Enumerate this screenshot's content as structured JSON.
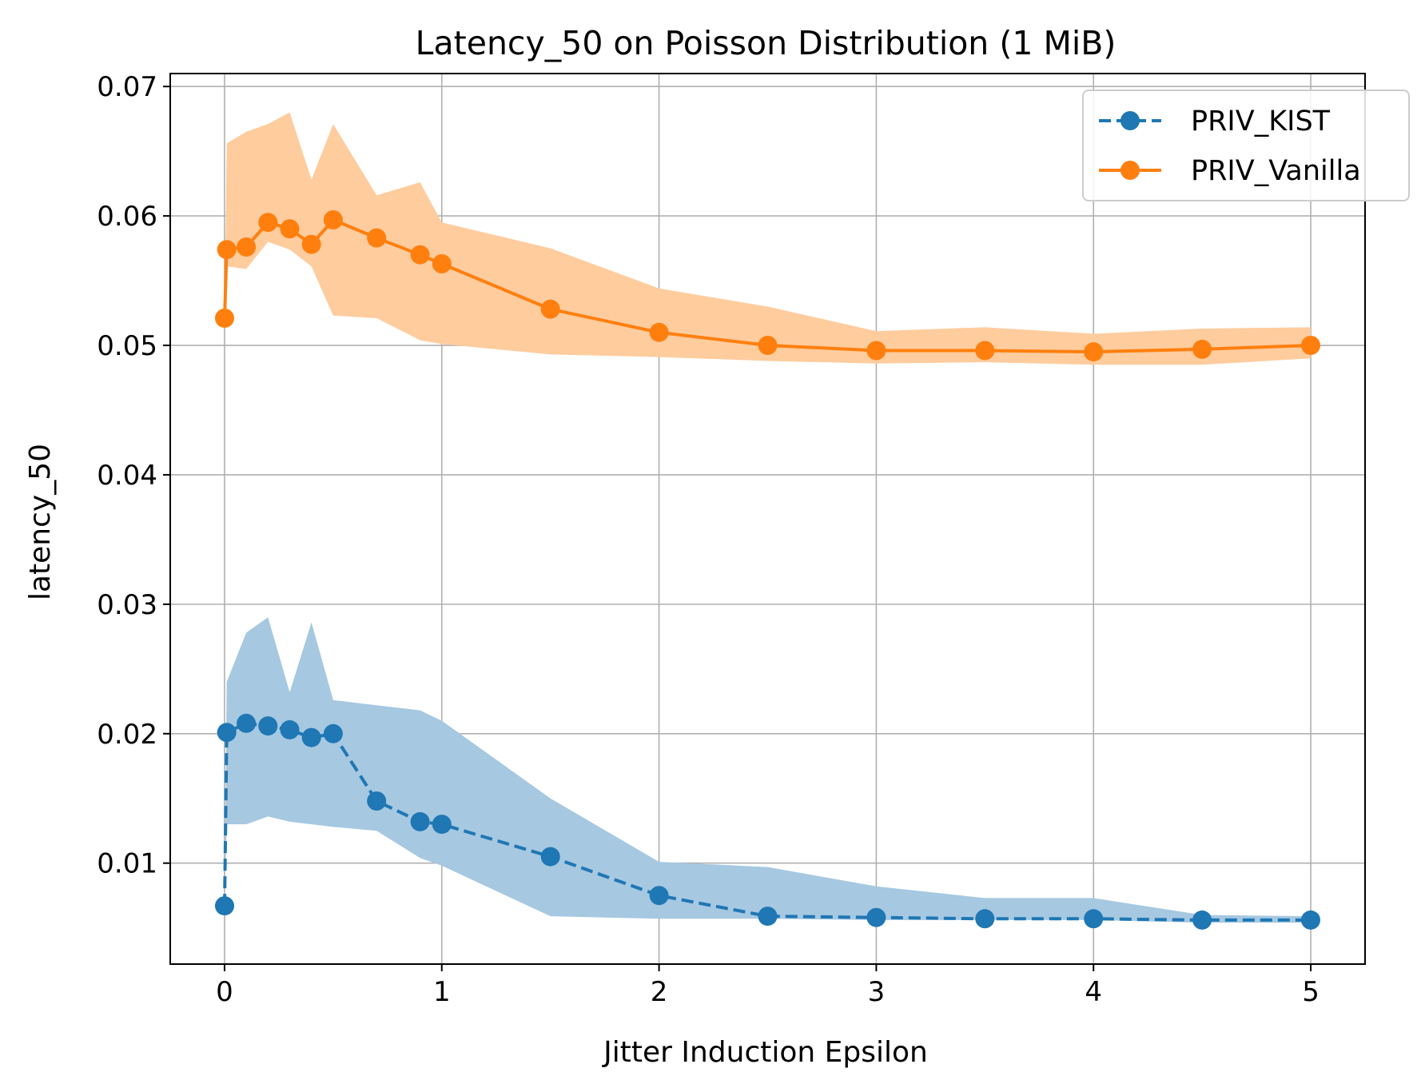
{
  "chart_data": {
    "type": "line",
    "title": "Latency_50 on Poisson Distribution (1 MiB)",
    "xlabel": "Jitter Induction Epsilon",
    "ylabel": "latency_50",
    "xlim": [
      -0.25,
      5.25
    ],
    "ylim": [
      0.0022,
      0.071
    ],
    "xticks": [
      0,
      1,
      2,
      3,
      4,
      5
    ],
    "xtick_labels": [
      "0",
      "1",
      "2",
      "3",
      "4",
      "5"
    ],
    "yticks": [
      0.01,
      0.02,
      0.03,
      0.04,
      0.05,
      0.06,
      0.07
    ],
    "ytick_labels": [
      "0.01",
      "0.02",
      "0.03",
      "0.04",
      "0.05",
      "0.06",
      "0.07"
    ],
    "grid": true,
    "legend_position": "top-right",
    "x": [
      0,
      0.01,
      0.1,
      0.2,
      0.3,
      0.4,
      0.5,
      0.7,
      0.9,
      1.0,
      1.5,
      2.0,
      2.5,
      3.0,
      3.5,
      4.0,
      4.5,
      5.0
    ],
    "series": [
      {
        "name": "PRIV_KIST",
        "color": "#1f77b4",
        "band_color": "#a6c8e1",
        "line_style": "dashed",
        "marker": "circle",
        "values": [
          0.0067,
          0.0201,
          0.0208,
          0.0206,
          0.0203,
          0.0197,
          0.02,
          0.0148,
          0.0132,
          0.013,
          0.0105,
          0.0075,
          0.0059,
          0.0058,
          0.0057,
          0.0057,
          0.0056,
          0.0056
        ],
        "band_upper": [
          0.0067,
          0.024,
          0.0278,
          0.029,
          0.0232,
          0.0286,
          0.0226,
          0.0222,
          0.0218,
          0.021,
          0.015,
          0.0101,
          0.0097,
          0.0082,
          0.0073,
          0.0073,
          0.006,
          0.0059
        ],
        "band_lower": [
          0.0067,
          0.013,
          0.013,
          0.0136,
          0.0132,
          0.013,
          0.0128,
          0.0125,
          0.0104,
          0.0098,
          0.0059,
          0.0057,
          0.0057,
          0.0056,
          0.0056,
          0.0056,
          0.0054,
          0.0054
        ]
      },
      {
        "name": "PRIV_Vanilla",
        "color": "#ff7f0e",
        "band_color": "#ffcc9e",
        "line_style": "solid",
        "marker": "circle",
        "values": [
          0.0521,
          0.0574,
          0.0576,
          0.0595,
          0.059,
          0.0578,
          0.0597,
          0.0583,
          0.057,
          0.0563,
          0.0528,
          0.051,
          0.05,
          0.0496,
          0.0496,
          0.0495,
          0.0497,
          0.05
        ],
        "band_upper": [
          0.0521,
          0.0656,
          0.0665,
          0.0671,
          0.068,
          0.0628,
          0.0671,
          0.0616,
          0.0626,
          0.0595,
          0.0575,
          0.0544,
          0.053,
          0.0511,
          0.0514,
          0.0509,
          0.0513,
          0.0514
        ],
        "band_lower": [
          0.0521,
          0.0561,
          0.0559,
          0.058,
          0.0574,
          0.0561,
          0.0523,
          0.0521,
          0.0504,
          0.0501,
          0.0493,
          0.0491,
          0.0488,
          0.0486,
          0.0487,
          0.0485,
          0.0485,
          0.049
        ]
      }
    ]
  }
}
